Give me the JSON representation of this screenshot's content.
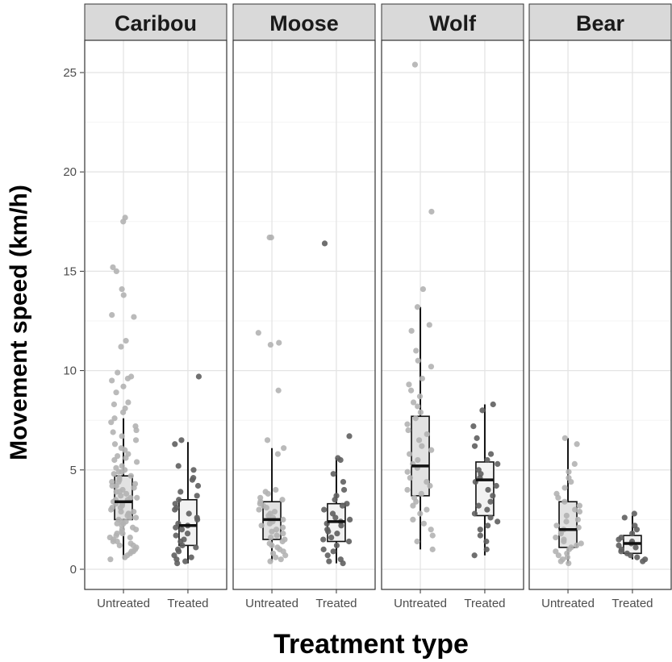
{
  "chart_data": {
    "type": "boxplot with jittered points, faceted",
    "xlabel": "Treatment type",
    "ylabel": "Movement speed (km/h)",
    "ylim": [
      0,
      25.5
    ],
    "yticks": [
      0,
      5,
      10,
      15,
      20,
      25
    ],
    "grid": true,
    "categories": [
      "Untreated",
      "Treated"
    ],
    "colors": {
      "Untreated": "#b3b3b3",
      "Treated": "#5f5f5f",
      "box_untreated": "#e2e2e2",
      "box_treated": "#f2f2f2",
      "strip": "#d9d9d9"
    },
    "panels": [
      {
        "title": "Caribou",
        "groups": [
          {
            "category": "Untreated",
            "whisker_low": 0.5,
            "q1": 2.5,
            "median": 3.4,
            "q3": 4.7,
            "whisker_high": 7.6,
            "points": [
              17.5,
              17.7,
              15.2,
              15.0,
              14.1,
              13.8,
              12.8,
              12.7,
              11.5,
              11.2,
              9.9,
              9.7,
              9.6,
              9.5,
              9.2,
              8.9,
              8.4,
              8.3,
              8.1,
              7.9,
              7.6,
              7.4,
              7.2,
              7.0,
              6.9,
              6.7,
              6.5,
              6.3,
              6.1,
              6.0,
              5.8,
              5.7,
              5.5,
              5.4,
              5.2,
              5.1,
              5.0,
              4.9,
              4.8,
              4.7,
              4.6,
              4.5,
              4.4,
              4.3,
              4.2,
              4.1,
              4.0,
              3.9,
              3.8,
              3.7,
              3.6,
              3.5,
              3.4,
              3.3,
              3.2,
              3.1,
              3.0,
              2.9,
              2.8,
              2.7,
              2.6,
              2.5,
              2.4,
              2.3,
              2.2,
              2.1,
              2.0,
              1.9,
              1.8,
              1.7,
              1.6,
              1.5,
              1.4,
              1.3,
              1.2,
              1.1,
              1.0,
              0.9,
              0.8,
              0.7,
              0.6,
              0.5,
              4.4,
              3.9,
              3.5,
              3.1,
              2.8,
              2.6,
              2.3,
              2.0,
              1.6,
              1.2,
              5.6,
              4.9,
              4.2,
              3.6,
              3.3,
              2.9,
              2.4,
              1.8,
              1.4,
              0.9
            ]
          },
          {
            "category": "Treated",
            "whisker_low": 0.3,
            "q1": 1.2,
            "median": 2.2,
            "q3": 3.5,
            "whisker_high": 6.4,
            "points": [
              9.7,
              6.5,
              6.3,
              5.2,
              5.0,
              4.6,
              4.5,
              4.2,
              3.9,
              3.7,
              3.5,
              3.3,
              3.1,
              3.0,
              2.8,
              2.6,
              2.5,
              2.3,
              2.2,
              2.1,
              2.0,
              1.8,
              1.7,
              1.5,
              1.4,
              1.2,
              1.1,
              1.0,
              0.9,
              0.7,
              0.6,
              0.5,
              0.4,
              0.3
            ]
          }
        ]
      },
      {
        "title": "Moose",
        "groups": [
          {
            "category": "Untreated",
            "whisker_low": 0.4,
            "q1": 1.5,
            "median": 2.5,
            "q3": 3.4,
            "whisker_high": 6.1,
            "points": [
              16.7,
              16.7,
              11.9,
              11.4,
              11.3,
              9.0,
              6.5,
              6.1,
              5.8,
              4.0,
              3.9,
              3.8,
              3.6,
              3.5,
              3.4,
              3.3,
              3.2,
              3.1,
              3.0,
              2.9,
              2.8,
              2.7,
              2.6,
              2.5,
              2.4,
              2.3,
              2.2,
              2.1,
              2.0,
              1.9,
              1.8,
              1.7,
              1.6,
              1.5,
              1.4,
              1.3,
              1.2,
              1.1,
              1.0,
              0.9,
              0.8,
              0.7,
              0.6,
              0.5,
              0.4
            ]
          },
          {
            "category": "Treated",
            "whisker_low": 0.3,
            "q1": 1.4,
            "median": 2.4,
            "q3": 3.3,
            "whisker_high": 5.6,
            "points": [
              16.4,
              6.7,
              5.6,
              5.5,
              4.8,
              4.4,
              4.0,
              3.7,
              3.5,
              3.3,
              3.2,
              3.0,
              2.8,
              2.6,
              2.5,
              2.4,
              2.3,
              2.2,
              2.0,
              1.9,
              1.8,
              1.6,
              1.5,
              1.4,
              1.2,
              1.0,
              0.9,
              0.7,
              0.5,
              0.4,
              0.3
            ]
          }
        ]
      },
      {
        "title": "Wolf",
        "groups": [
          {
            "category": "Untreated",
            "whisker_low": 1.0,
            "q1": 3.7,
            "median": 5.2,
            "q3": 7.7,
            "whisker_high": 13.2,
            "points": [
              25.4,
              18.0,
              14.1,
              13.2,
              12.3,
              12.0,
              11.0,
              10.5,
              10.2,
              9.6,
              9.3,
              9.0,
              8.7,
              8.4,
              8.2,
              7.9,
              7.6,
              7.3,
              7.0,
              6.8,
              6.5,
              6.2,
              6.0,
              5.8,
              5.5,
              5.3,
              5.1,
              4.9,
              4.6,
              4.4,
              4.2,
              4.0,
              3.8,
              3.6,
              3.4,
              3.2,
              3.0,
              2.8,
              2.5,
              2.3,
              2.0,
              1.7,
              1.4,
              1.0
            ]
          },
          {
            "category": "Treated",
            "whisker_low": 0.7,
            "q1": 2.7,
            "median": 4.5,
            "q3": 5.4,
            "whisker_high": 8.3,
            "points": [
              8.3,
              8.0,
              7.2,
              6.6,
              6.2,
              5.8,
              5.5,
              5.3,
              5.0,
              4.8,
              4.6,
              4.4,
              4.2,
              4.0,
              3.7,
              3.4,
              3.2,
              3.0,
              2.8,
              2.6,
              2.4,
              2.2,
              2.0,
              1.7,
              1.4,
              1.0,
              0.7
            ]
          }
        ]
      },
      {
        "title": "Bear",
        "groups": [
          {
            "category": "Untreated",
            "whisker_low": 0.3,
            "q1": 1.1,
            "median": 2.0,
            "q3": 3.4,
            "whisker_high": 6.6,
            "points": [
              6.6,
              6.3,
              5.3,
              4.9,
              4.6,
              4.4,
              4.1,
              3.8,
              3.6,
              3.4,
              3.2,
              3.0,
              2.9,
              2.7,
              2.5,
              2.4,
              2.2,
              2.1,
              2.0,
              1.9,
              1.8,
              1.6,
              1.5,
              1.4,
              1.3,
              1.2,
              1.1,
              1.0,
              0.9,
              0.8,
              0.7,
              0.6,
              0.5,
              0.4,
              0.3
            ]
          },
          {
            "category": "Treated",
            "whisker_low": 0.5,
            "q1": 0.8,
            "median": 1.3,
            "q3": 1.7,
            "whisker_high": 2.7,
            "points": [
              2.8,
              2.6,
              2.2,
              2.0,
              1.8,
              1.6,
              1.5,
              1.4,
              1.3,
              1.2,
              1.1,
              1.0,
              0.9,
              0.8,
              0.7,
              0.6,
              0.5,
              0.4
            ]
          }
        ]
      }
    ]
  }
}
